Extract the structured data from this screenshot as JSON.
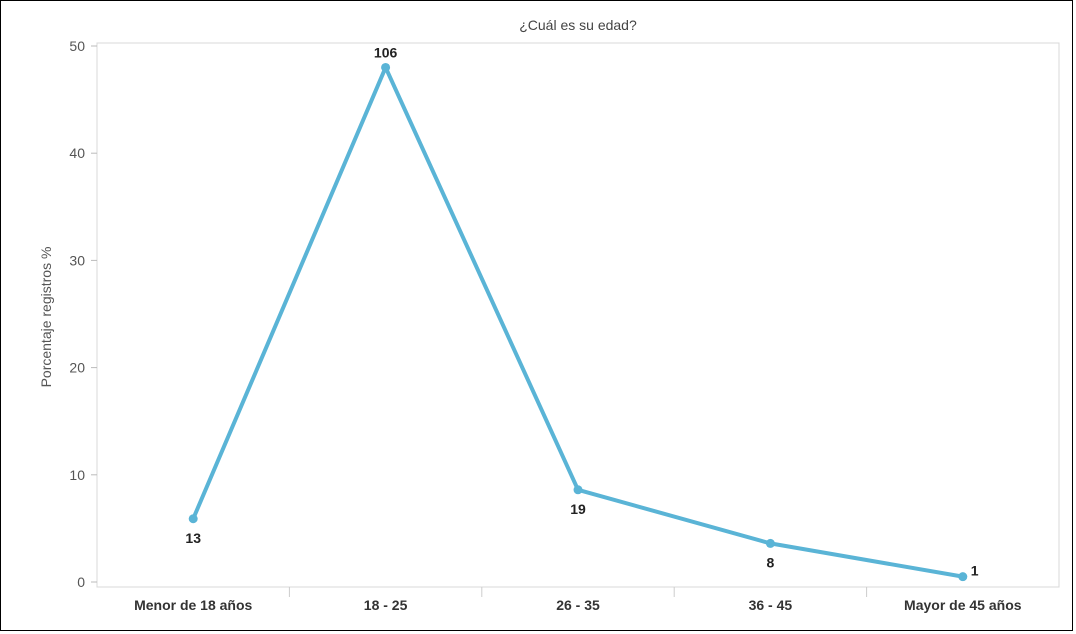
{
  "colors": {
    "line": "#5ab4d6",
    "marker": "#5ab4d6",
    "grid_border": "#d8d8d8"
  },
  "chart_data": {
    "type": "line",
    "title": "¿Cuál es su edad?",
    "xlabel": "",
    "ylabel": "Porcentaje registros %",
    "categories": [
      "Menor de 18 años",
      "18 - 25",
      "26 - 35",
      "36 - 45",
      "Mayor de 45 años"
    ],
    "series": [
      {
        "values": [
          5.9,
          48.0,
          8.6,
          3.6,
          0.5
        ],
        "data_labels": [
          "13",
          "106",
          "19",
          "8",
          "1"
        ]
      }
    ],
    "ylim": [
      0,
      50
    ],
    "yticks": [
      0,
      10,
      20,
      30,
      40,
      50
    ],
    "ytick_labels": [
      "0",
      "10",
      "20",
      "30",
      "40",
      "50"
    ],
    "grid": false,
    "legend": "none"
  }
}
